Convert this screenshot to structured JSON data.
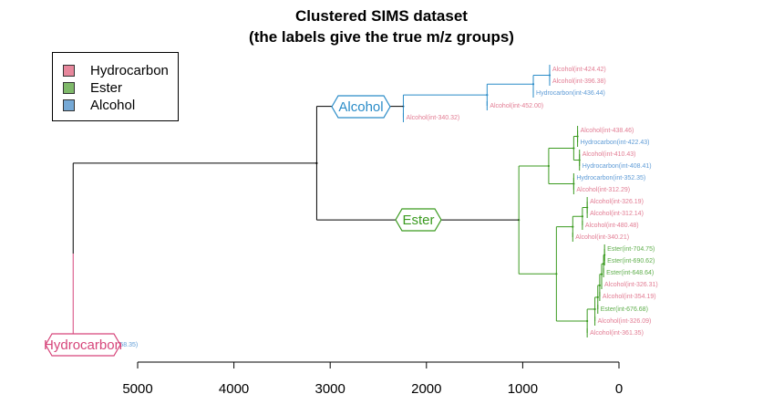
{
  "chart_data": {
    "type": "dendrogram",
    "title": "Clustered SIMS dataset",
    "subtitle": "(the labels give the true m/z groups)",
    "xlim": [
      5000,
      0
    ],
    "x_ticks": [
      5000,
      4000,
      3000,
      2000,
      1000,
      0
    ],
    "legend": {
      "placement": "top-left",
      "entries": [
        {
          "label": "Hydrocarbon",
          "color": "#E7879C"
        },
        {
          "label": "Ester",
          "color": "#7FB96A"
        },
        {
          "label": "Alcohol",
          "color": "#76A9D6"
        }
      ]
    },
    "colors": {
      "root": "#000000",
      "hydrocarbon_branch": "#D6457A",
      "alcohol_branch": "#2A8CC8",
      "ester_branch": "#3A9A1F",
      "leaf_alcohol_text": "#E27C93",
      "leaf_hydrocarbon_text": "#5E9BD6",
      "leaf_ester_text": "#5FAE4C"
    },
    "cluster_labels": [
      {
        "label": "Hydrocarbon",
        "height": 5670,
        "branch": "hydrocarbon_branch"
      },
      {
        "label": "Alcohol",
        "height": 2920,
        "branch": "alcohol_branch"
      },
      {
        "label": "Ester",
        "height": 2000,
        "branch": "ester_branch"
      }
    ],
    "nodes": {
      "root": {
        "height": 5670,
        "children": [
          "hydro",
          "sub"
        ],
        "branch": "root"
      },
      "sub": {
        "height": 3140,
        "children": [
          "alc",
          "est"
        ],
        "branch": "root"
      },
      "alc": {
        "height": 2240,
        "children": [
          "A1",
          "L:Alcohol(int-340.32)"
        ],
        "branch": "alcohol_branch"
      },
      "A1": {
        "height": 1370,
        "children": [
          "A2",
          "L:Alcohol(int-452.00)"
        ],
        "branch": "alcohol_branch"
      },
      "A2": {
        "height": 890,
        "children": [
          "A3",
          "L:Hydrocarbon(int-436.44)"
        ],
        "branch": "alcohol_branch"
      },
      "A3": {
        "height": 720,
        "children": [
          "L:Alcohol(int-424.42)",
          "L:Alcohol(int-396.38)"
        ],
        "branch": "alcohol_branch"
      },
      "est": {
        "height": 1040,
        "children": [
          "E1",
          "E2"
        ],
        "branch": "ester_branch"
      },
      "E1": {
        "height": 730,
        "children": [
          "E3",
          "E4"
        ],
        "branch": "ester_branch"
      },
      "E3": {
        "height": 470,
        "children": [
          "E5",
          "E6"
        ],
        "branch": "ester_branch"
      },
      "E5": {
        "height": 430,
        "children": [
          "L:Alcohol(int-438.46)",
          "L:Hydrocarbon(int-422.43)"
        ],
        "branch": "ester_branch"
      },
      "E6": {
        "height": 410,
        "children": [
          "L:Alcohol(int-410.43)",
          "L:Hydrocarbon(int-408.41)"
        ],
        "branch": "ester_branch"
      },
      "E4": {
        "height": 470,
        "children": [
          "L:Hydrocarbon(int-352.35)",
          "L:Alcohol(int-312.29)"
        ],
        "branch": "ester_branch"
      },
      "E2": {
        "height": 650,
        "children": [
          "E7",
          "E8"
        ],
        "branch": "ester_branch"
      },
      "E7": {
        "height": 480,
        "children": [
          "E9",
          "L:Alcohol(int-340.21)"
        ],
        "branch": "ester_branch"
      },
      "E9": {
        "height": 380,
        "children": [
          "E10",
          "L:Alcohol(int-480.48)"
        ],
        "branch": "ester_branch"
      },
      "E10": {
        "height": 330,
        "children": [
          "L:Alcohol(int-326.19)",
          "L:Alcohol(int-312.14)"
        ],
        "branch": "ester_branch"
      },
      "E8": {
        "height": 330,
        "children": [
          "E11",
          "L:Alcohol(int-361.35)"
        ],
        "branch": "ester_branch"
      },
      "E11": {
        "height": 250,
        "children": [
          "E12",
          "L:Alcohol(int-326.09)"
        ],
        "branch": "ester_branch"
      },
      "E12": {
        "height": 220,
        "children": [
          "E13",
          "L:Ester(int-676.68)"
        ],
        "branch": "ester_branch"
      },
      "E13": {
        "height": 200,
        "children": [
          "E14",
          "L:Alcohol(int-354.19)"
        ],
        "branch": "ester_branch"
      },
      "E14": {
        "height": 180,
        "children": [
          "E15",
          "L:Alcohol(int-326.31)"
        ],
        "branch": "ester_branch"
      },
      "E15": {
        "height": 160,
        "children": [
          "E16",
          "L:Ester(int-648.64)"
        ],
        "branch": "ester_branch"
      },
      "E16": {
        "height": 150,
        "children": [
          "L:Ester(int-704.75)",
          "L:Ester(int-690.62)"
        ],
        "branch": "ester_branch"
      },
      "hydro": {
        "height": 0,
        "children": [],
        "branch": "hydrocarbon_branch",
        "leaf_label": "Hydrocarbon(int-58.35)"
      }
    },
    "leaves_in_order": [
      "Hydrocarbon(int-58.35)",
      "Alcohol(int-424.42)",
      "Alcohol(int-396.38)",
      "Hydrocarbon(int-436.44)",
      "Alcohol(int-452.00)",
      "Alcohol(int-340.32)",
      "Alcohol(int-438.46)",
      "Hydrocarbon(int-422.43)",
      "Alcohol(int-410.43)",
      "Hydrocarbon(int-408.41)",
      "Hydrocarbon(int-352.35)",
      "Alcohol(int-312.29)",
      "Alcohol(int-326.19)",
      "Alcohol(int-312.14)",
      "Alcohol(int-480.48)",
      "Alcohol(int-340.21)",
      "Ester(int-704.75)",
      "Ester(int-690.62)",
      "Ester(int-648.64)",
      "Alcohol(int-326.31)",
      "Alcohol(int-354.19)",
      "Ester(int-676.68)",
      "Alcohol(int-326.09)",
      "Alcohol(int-361.35)"
    ]
  }
}
